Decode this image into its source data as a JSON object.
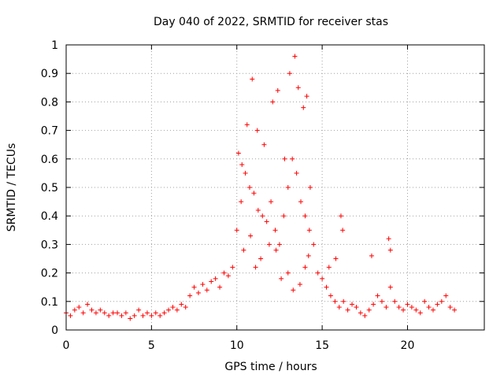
{
  "chart_data": {
    "type": "scatter",
    "title": "Day 040 of 2022, SRMTID for receiver stas",
    "xlabel": "GPS time / hours",
    "ylabel": "SRMTID / TECUs",
    "xlim": [
      0,
      24.5
    ],
    "ylim": [
      0,
      1
    ],
    "xticks": [
      "0",
      "5",
      "10",
      "15",
      "20"
    ],
    "xtick_values": [
      0,
      5,
      10,
      15,
      20
    ],
    "yticks": [
      "0",
      "0.1",
      "0.2",
      "0.3",
      "0.4",
      "0.5",
      "0.6",
      "0.7",
      "0.8",
      "0.9",
      "1"
    ],
    "ytick_values": [
      0,
      0.1,
      0.2,
      0.3,
      0.4,
      0.5,
      0.6,
      0.7,
      0.8,
      0.9,
      1.0
    ],
    "grid": true,
    "marker": "+",
    "marker_color": "#ff0000",
    "series": [
      {
        "name": "SRMTID",
        "x": [
          0.0,
          0.25,
          0.5,
          0.75,
          1.0,
          1.25,
          1.5,
          1.75,
          2.0,
          2.25,
          2.5,
          2.75,
          3.0,
          3.25,
          3.5,
          3.75,
          4.0,
          4.25,
          4.5,
          4.75,
          5.0,
          5.25,
          5.5,
          5.75,
          6.0,
          6.25,
          6.5,
          6.75,
          7.0,
          7.25,
          7.5,
          7.75,
          8.0,
          8.25,
          8.5,
          8.75,
          9.0,
          9.25,
          9.5,
          9.75,
          10.0,
          10.25,
          10.5,
          10.75,
          11.0,
          11.25,
          11.5,
          11.75,
          12.0,
          12.25,
          12.5,
          12.75,
          13.0,
          13.25,
          13.5,
          13.75,
          14.0,
          14.25,
          14.5,
          14.75,
          15.0,
          15.25,
          15.5,
          15.75,
          16.0,
          16.25,
          16.5,
          16.75,
          17.0,
          17.25,
          17.5,
          17.75,
          18.0,
          18.25,
          18.5,
          18.75,
          19.0,
          19.25,
          19.5,
          19.75,
          20.0,
          20.25,
          20.5,
          20.75,
          21.0,
          21.25,
          21.5,
          21.75,
          22.0,
          22.25,
          22.5,
          22.75,
          10.1,
          10.3,
          10.6,
          10.9,
          11.2,
          11.6,
          12.1,
          12.4,
          12.8,
          13.1,
          13.4,
          13.6,
          13.9,
          14.1,
          14.3,
          10.4,
          10.8,
          11.1,
          11.4,
          11.9,
          12.3,
          12.6,
          13.0,
          13.3,
          13.7,
          14.0,
          14.2,
          16.1,
          16.2,
          18.9,
          19.0,
          17.9,
          15.4,
          15.8
        ],
        "y": [
          0.06,
          0.05,
          0.07,
          0.08,
          0.06,
          0.09,
          0.07,
          0.06,
          0.07,
          0.06,
          0.05,
          0.06,
          0.06,
          0.05,
          0.06,
          0.04,
          0.05,
          0.07,
          0.05,
          0.06,
          0.05,
          0.06,
          0.05,
          0.06,
          0.07,
          0.08,
          0.07,
          0.09,
          0.08,
          0.12,
          0.15,
          0.13,
          0.16,
          0.14,
          0.17,
          0.18,
          0.15,
          0.2,
          0.19,
          0.22,
          0.35,
          0.45,
          0.55,
          0.5,
          0.48,
          0.42,
          0.4,
          0.38,
          0.45,
          0.35,
          0.3,
          0.4,
          0.5,
          0.6,
          0.55,
          0.45,
          0.4,
          0.35,
          0.3,
          0.2,
          0.18,
          0.15,
          0.12,
          0.1,
          0.08,
          0.1,
          0.07,
          0.09,
          0.08,
          0.06,
          0.05,
          0.07,
          0.09,
          0.12,
          0.1,
          0.08,
          0.15,
          0.1,
          0.08,
          0.07,
          0.09,
          0.08,
          0.07,
          0.06,
          0.1,
          0.08,
          0.07,
          0.09,
          0.1,
          0.12,
          0.08,
          0.07,
          0.62,
          0.58,
          0.72,
          0.88,
          0.7,
          0.65,
          0.8,
          0.84,
          0.6,
          0.9,
          0.96,
          0.85,
          0.78,
          0.82,
          0.5,
          0.28,
          0.33,
          0.22,
          0.25,
          0.3,
          0.28,
          0.18,
          0.2,
          0.14,
          0.16,
          0.22,
          0.26,
          0.4,
          0.35,
          0.32,
          0.28,
          0.26,
          0.22,
          0.25
        ]
      }
    ]
  }
}
